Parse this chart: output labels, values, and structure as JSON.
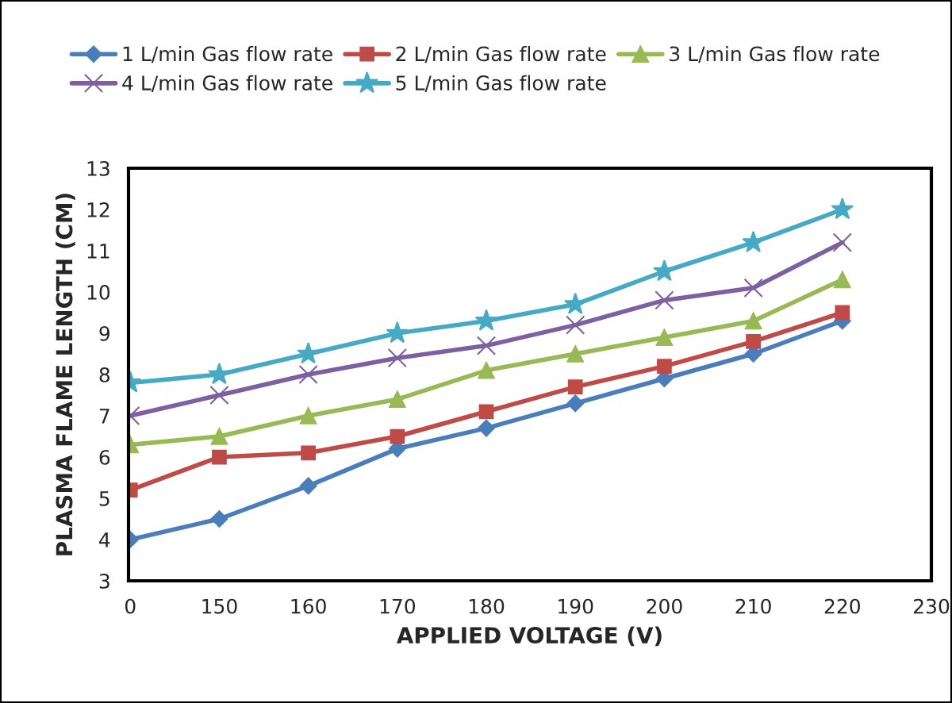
{
  "chart_data": {
    "type": "line",
    "xlabel": "APPLIED VOLTAGE (V)",
    "ylabel": "PLASMA FLAME LENGTH (CM)",
    "categories": [
      "0",
      "150",
      "160",
      "170",
      "180",
      "190",
      "200",
      "210",
      "220",
      "230"
    ],
    "ylim": [
      3,
      13
    ],
    "yticks": [
      3,
      4,
      5,
      6,
      7,
      8,
      9,
      10,
      11,
      12,
      13
    ],
    "grid": false,
    "legend": "top",
    "series": [
      {
        "name": "1 L/min Gas flow rate",
        "color": "#4a7ebb",
        "marker": "diamond",
        "values": [
          4.0,
          4.5,
          5.3,
          6.2,
          6.7,
          7.3,
          7.9,
          8.5,
          9.3,
          null
        ]
      },
      {
        "name": "2 L/min Gas flow rate",
        "color": "#be4b48",
        "marker": "square",
        "values": [
          5.2,
          6.0,
          6.1,
          6.5,
          7.1,
          7.7,
          8.2,
          8.8,
          9.5,
          null
        ]
      },
      {
        "name": "3 L/min Gas flow rate",
        "color": "#98b954",
        "marker": "triangle",
        "values": [
          6.3,
          6.5,
          7.0,
          7.4,
          8.1,
          8.5,
          8.9,
          9.3,
          10.3,
          null
        ]
      },
      {
        "name": "4 L/min Gas flow rate",
        "color": "#7d60a0",
        "marker": "cross",
        "values": [
          7.0,
          7.5,
          8.0,
          8.4,
          8.7,
          9.2,
          9.8,
          10.1,
          11.2,
          null
        ]
      },
      {
        "name": "5 L/min Gas flow rate",
        "color": "#46aac5",
        "marker": "star",
        "values": [
          7.8,
          8.0,
          8.5,
          9.0,
          9.3,
          9.7,
          10.5,
          11.2,
          12.0,
          null
        ]
      }
    ]
  }
}
